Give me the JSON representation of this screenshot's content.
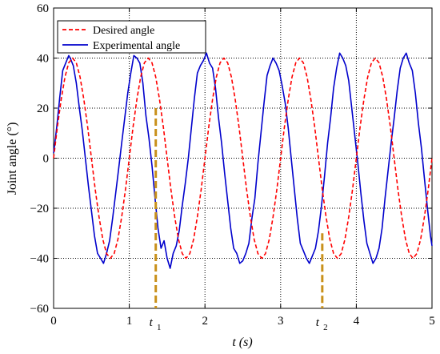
{
  "chart_data": {
    "type": "line",
    "title": "",
    "xlabel": "t (s)",
    "ylabel": "Joint angle (°)",
    "xlim": [
      0,
      5
    ],
    "ylim": [
      -60,
      60
    ],
    "xticks": [
      0,
      1,
      2,
      3,
      4,
      5
    ],
    "yticks": [
      -60,
      -40,
      -20,
      0,
      20,
      40,
      60
    ],
    "xtick_labels": [
      "0",
      "1",
      "2",
      "3",
      "4",
      "5"
    ],
    "ytick_labels": [
      "−60",
      "−40",
      "−20",
      "0",
      "20",
      "40",
      "60"
    ],
    "grid": true,
    "legend_position": "top-left",
    "series": [
      {
        "name": "Desired angle",
        "style": "dashed",
        "color": "#ff0000",
        "x": [
          0,
          0.05,
          0.1,
          0.15,
          0.2,
          0.25,
          0.3,
          0.35,
          0.4,
          0.45,
          0.5,
          0.55,
          0.6,
          0.65,
          0.7,
          0.75,
          0.8,
          0.85,
          0.9,
          0.95,
          1.0,
          1.05,
          1.1,
          1.15,
          1.2,
          1.25,
          1.3,
          1.35,
          1.4,
          1.45,
          1.5,
          1.55,
          1.6,
          1.65,
          1.7,
          1.75,
          1.8,
          1.85,
          1.9,
          1.95,
          2.0,
          2.05,
          2.1,
          2.15,
          2.2,
          2.25,
          2.3,
          2.35,
          2.4,
          2.45,
          2.5,
          2.55,
          2.6,
          2.65,
          2.7,
          2.75,
          2.8,
          2.85,
          2.9,
          2.95,
          3.0,
          3.05,
          3.1,
          3.15,
          3.2,
          3.25,
          3.3,
          3.35,
          3.4,
          3.45,
          3.5,
          3.55,
          3.6,
          3.65,
          3.7,
          3.75,
          3.8,
          3.85,
          3.9,
          3.95,
          4.0,
          4.05,
          4.1,
          4.15,
          4.2,
          4.25,
          4.3,
          4.35,
          4.4,
          4.45,
          4.5,
          4.55,
          4.6,
          4.65,
          4.7,
          4.75,
          4.8,
          4.85,
          4.9,
          4.95,
          5.0
        ],
        "y": [
          0,
          12.4,
          23.5,
          32.4,
          38.1,
          40.0,
          38.1,
          32.4,
          23.5,
          12.4,
          0,
          -12.4,
          -23.5,
          -32.4,
          -38.1,
          -40.0,
          -38.1,
          -32.4,
          -23.5,
          -12.4,
          0,
          12.4,
          23.5,
          32.4,
          38.1,
          40.0,
          38.1,
          32.4,
          23.5,
          12.4,
          0,
          -12.4,
          -23.5,
          -32.4,
          -38.1,
          -40.0,
          -38.1,
          -32.4,
          -23.5,
          -12.4,
          0,
          12.4,
          23.5,
          32.4,
          38.1,
          40.0,
          38.1,
          32.4,
          23.5,
          12.4,
          0,
          -12.4,
          -23.5,
          -32.4,
          -38.1,
          -40.0,
          -38.1,
          -32.4,
          -23.5,
          -12.4,
          0,
          12.4,
          23.5,
          32.4,
          38.1,
          40.0,
          38.1,
          32.4,
          23.5,
          12.4,
          0,
          -12.4,
          -23.5,
          -32.4,
          -38.1,
          -40.0,
          -38.1,
          -32.4,
          -23.5,
          -12.4,
          0,
          12.4,
          23.5,
          32.4,
          38.1,
          40.0,
          38.1,
          32.4,
          23.5,
          12.4,
          0,
          -12.4,
          -23.5,
          -32.4,
          -38.1,
          -40.0,
          -38.1,
          -32.4,
          -23.5,
          -12.4,
          0
        ]
      },
      {
        "name": "Experimental angle",
        "style": "solid",
        "color": "#0000cc",
        "x": [
          0,
          0.04,
          0.08,
          0.12,
          0.16,
          0.2,
          0.22,
          0.26,
          0.3,
          0.34,
          0.38,
          0.42,
          0.46,
          0.5,
          0.54,
          0.58,
          0.62,
          0.66,
          0.7,
          0.74,
          0.78,
          0.82,
          0.86,
          0.9,
          0.94,
          0.98,
          1.02,
          1.06,
          1.1,
          1.14,
          1.18,
          1.22,
          1.26,
          1.3,
          1.34,
          1.38,
          1.42,
          1.46,
          1.5,
          1.54,
          1.58,
          1.62,
          1.66,
          1.7,
          1.74,
          1.78,
          1.82,
          1.86,
          1.9,
          1.94,
          1.98,
          2.02,
          2.06,
          2.1,
          2.14,
          2.18,
          2.22,
          2.26,
          2.3,
          2.34,
          2.38,
          2.42,
          2.46,
          2.5,
          2.54,
          2.58,
          2.62,
          2.66,
          2.7,
          2.74,
          2.78,
          2.82,
          2.86,
          2.9,
          2.94,
          2.98,
          3.02,
          3.06,
          3.1,
          3.14,
          3.18,
          3.22,
          3.26,
          3.3,
          3.34,
          3.38,
          3.42,
          3.46,
          3.5,
          3.54,
          3.58,
          3.62,
          3.66,
          3.7,
          3.74,
          3.78,
          3.82,
          3.86,
          3.9,
          3.94,
          3.98,
          4.02,
          4.06,
          4.1,
          4.14,
          4.18,
          4.22,
          4.26,
          4.3,
          4.34,
          4.38,
          4.42,
          4.46,
          4.5,
          4.54,
          4.58,
          4.62,
          4.66,
          4.7,
          4.74,
          4.78,
          4.82,
          4.86,
          4.9,
          4.94,
          4.98,
          5.0
        ],
        "y": [
          2,
          12,
          24,
          35,
          38,
          41,
          40,
          37,
          30,
          20,
          11,
          0,
          -11,
          -21,
          -31,
          -38,
          -40,
          -42,
          -38,
          -33,
          -24,
          -14,
          -4,
          6,
          16,
          26,
          34,
          41,
          40,
          38,
          30,
          17,
          8,
          -3,
          -16,
          -28,
          -36,
          -33,
          -40,
          -44,
          -38,
          -35,
          -29,
          -19,
          -10,
          0,
          12,
          24,
          34,
          37,
          39,
          42,
          38,
          36,
          28,
          16,
          6,
          -6,
          -17,
          -28,
          -36,
          -38,
          -42,
          -41,
          -38,
          -34,
          -24,
          -16,
          -2,
          10,
          22,
          33,
          37,
          40,
          38,
          35,
          29,
          22,
          12,
          0,
          -12,
          -24,
          -34,
          -37,
          -40,
          -42,
          -39,
          -36,
          -29,
          -19,
          -7,
          6,
          16,
          28,
          36,
          42,
          40,
          37,
          31,
          20,
          9,
          -2,
          -14,
          -25,
          -34,
          -38,
          -42,
          -40,
          -36,
          -28,
          -16,
          -5,
          6,
          16,
          27,
          36,
          40,
          42,
          38,
          35,
          26,
          14,
          4,
          -8,
          -20,
          -31,
          -35
        ]
      }
    ],
    "markers": [
      {
        "label": "t",
        "subscript": "1",
        "x": 1.35,
        "y_top": 20,
        "color": "#c8901a"
      },
      {
        "label": "t",
        "subscript": "2",
        "x": 3.55,
        "y_top": -30,
        "color": "#c8901a"
      }
    ]
  }
}
